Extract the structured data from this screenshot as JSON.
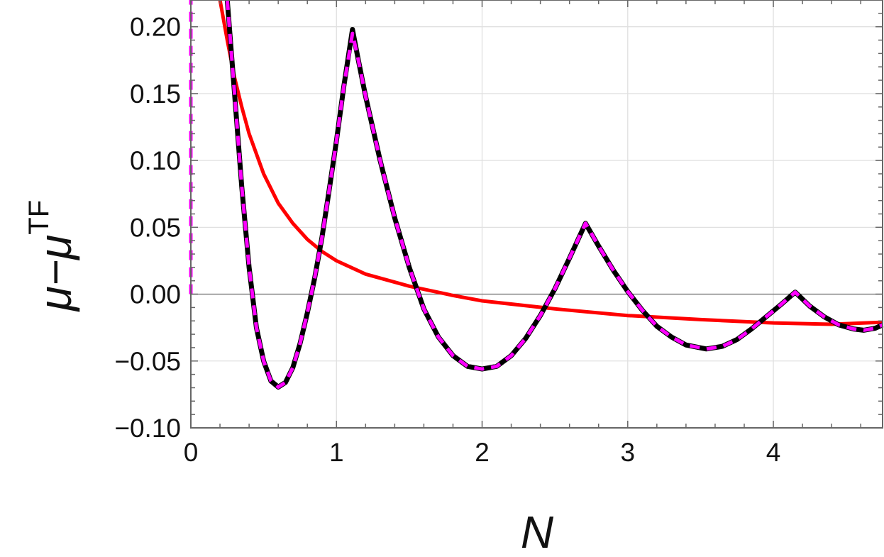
{
  "chart_data": {
    "type": "line",
    "title": "",
    "xlabel": "N",
    "ylabel": "μ−μ",
    "ylabel_superscript": "TF",
    "xlim": [
      0,
      4.75
    ],
    "ylim": [
      -0.1,
      0.22
    ],
    "x_ticks": [
      "0",
      "1",
      "2",
      "3",
      "4"
    ],
    "x_tick_values": [
      0,
      1,
      2,
      3,
      4
    ],
    "y_ticks": [
      "−0.10",
      "−0.05",
      "0.00",
      "0.05",
      "0.10",
      "0.15",
      "0.20"
    ],
    "y_tick_values": [
      -0.1,
      -0.05,
      0.0,
      0.05,
      0.1,
      0.15,
      0.2
    ],
    "grid": true,
    "colors": {
      "black_series": "#000000",
      "red_series": "#ff0000",
      "magenta_series": "#ff00ff",
      "grid": "#e0e0e0",
      "frame": "#666666"
    },
    "series": [
      {
        "style": "solid",
        "color": "#ff0000",
        "points": [
          [
            0.2,
            0.22
          ],
          [
            0.25,
            0.19
          ],
          [
            0.3,
            0.162
          ],
          [
            0.35,
            0.14
          ],
          [
            0.4,
            0.12
          ],
          [
            0.5,
            0.09
          ],
          [
            0.6,
            0.068
          ],
          [
            0.7,
            0.053
          ],
          [
            0.8,
            0.041
          ],
          [
            0.9,
            0.032
          ],
          [
            1.0,
            0.025
          ],
          [
            1.2,
            0.015
          ],
          [
            1.5,
            0.006
          ],
          [
            1.8,
            -0.001
          ],
          [
            2.0,
            -0.005
          ],
          [
            2.5,
            -0.011
          ],
          [
            3.0,
            -0.016
          ],
          [
            3.5,
            -0.019
          ],
          [
            4.0,
            -0.0215
          ],
          [
            4.4,
            -0.0225
          ],
          [
            4.75,
            -0.021
          ]
        ]
      },
      {
        "style": "solid",
        "color": "#000000",
        "points": [
          [
            0.25,
            0.22
          ],
          [
            0.3,
            0.15
          ],
          [
            0.35,
            0.08
          ],
          [
            0.4,
            0.02
          ],
          [
            0.45,
            -0.025
          ],
          [
            0.5,
            -0.05
          ],
          [
            0.55,
            -0.065
          ],
          [
            0.6,
            -0.0695
          ],
          [
            0.65,
            -0.066
          ],
          [
            0.7,
            -0.055
          ],
          [
            0.75,
            -0.037
          ],
          [
            0.8,
            -0.014
          ],
          [
            0.85,
            0.012
          ],
          [
            0.9,
            0.042
          ],
          [
            0.95,
            0.078
          ],
          [
            1.0,
            0.115
          ],
          [
            1.05,
            0.155
          ],
          [
            1.11,
            0.198
          ],
          [
            1.15,
            0.175
          ],
          [
            1.2,
            0.148
          ],
          [
            1.3,
            0.1
          ],
          [
            1.4,
            0.057
          ],
          [
            1.5,
            0.02
          ],
          [
            1.6,
            -0.011
          ],
          [
            1.7,
            -0.032
          ],
          [
            1.8,
            -0.046
          ],
          [
            1.9,
            -0.054
          ],
          [
            2.0,
            -0.056
          ],
          [
            2.1,
            -0.054
          ],
          [
            2.2,
            -0.046
          ],
          [
            2.3,
            -0.033
          ],
          [
            2.4,
            -0.016
          ],
          [
            2.5,
            0.004
          ],
          [
            2.6,
            0.027
          ],
          [
            2.71,
            0.053
          ],
          [
            2.8,
            0.036
          ],
          [
            2.9,
            0.018
          ],
          [
            3.0,
            0.002
          ],
          [
            3.1,
            -0.012
          ],
          [
            3.2,
            -0.024
          ],
          [
            3.3,
            -0.032
          ],
          [
            3.4,
            -0.038
          ],
          [
            3.54,
            -0.041
          ],
          [
            3.65,
            -0.039
          ],
          [
            3.75,
            -0.034
          ],
          [
            3.85,
            -0.026
          ],
          [
            3.95,
            -0.017
          ],
          [
            4.05,
            -0.008
          ],
          [
            4.15,
            0.0015
          ],
          [
            4.25,
            -0.009
          ],
          [
            4.35,
            -0.017
          ],
          [
            4.45,
            -0.023
          ],
          [
            4.55,
            -0.026
          ],
          [
            4.62,
            -0.027
          ],
          [
            4.7,
            -0.0255
          ],
          [
            4.75,
            -0.023
          ]
        ]
      },
      {
        "style": "dashed",
        "color": "#ff00ff",
        "points": [
          [
            0.25,
            0.22
          ],
          [
            0.3,
            0.15
          ],
          [
            0.35,
            0.08
          ],
          [
            0.4,
            0.02
          ],
          [
            0.45,
            -0.025
          ],
          [
            0.5,
            -0.05
          ],
          [
            0.55,
            -0.065
          ],
          [
            0.6,
            -0.0695
          ],
          [
            0.65,
            -0.066
          ],
          [
            0.7,
            -0.055
          ],
          [
            0.75,
            -0.037
          ],
          [
            0.8,
            -0.014
          ],
          [
            0.85,
            0.012
          ],
          [
            0.9,
            0.042
          ],
          [
            0.95,
            0.078
          ],
          [
            1.0,
            0.115
          ],
          [
            1.05,
            0.155
          ],
          [
            1.11,
            0.195
          ],
          [
            1.15,
            0.175
          ],
          [
            1.2,
            0.148
          ],
          [
            1.3,
            0.1
          ],
          [
            1.4,
            0.057
          ],
          [
            1.5,
            0.02
          ],
          [
            1.6,
            -0.011
          ],
          [
            1.7,
            -0.032
          ],
          [
            1.8,
            -0.046
          ],
          [
            1.9,
            -0.054
          ],
          [
            2.0,
            -0.056
          ],
          [
            2.1,
            -0.054
          ],
          [
            2.2,
            -0.046
          ],
          [
            2.3,
            -0.033
          ],
          [
            2.4,
            -0.016
          ],
          [
            2.5,
            0.004
          ],
          [
            2.6,
            0.027
          ],
          [
            2.71,
            0.053
          ],
          [
            2.8,
            0.036
          ],
          [
            2.9,
            0.018
          ],
          [
            3.0,
            0.002
          ],
          [
            3.1,
            -0.012
          ],
          [
            3.2,
            -0.024
          ],
          [
            3.3,
            -0.032
          ],
          [
            3.4,
            -0.038
          ],
          [
            3.54,
            -0.041
          ],
          [
            3.65,
            -0.039
          ],
          [
            3.75,
            -0.034
          ],
          [
            3.85,
            -0.026
          ],
          [
            3.95,
            -0.017
          ],
          [
            4.05,
            -0.008
          ],
          [
            4.15,
            0.0015
          ],
          [
            4.25,
            -0.009
          ],
          [
            4.35,
            -0.017
          ],
          [
            4.45,
            -0.023
          ],
          [
            4.55,
            -0.026
          ],
          [
            4.62,
            -0.027
          ],
          [
            4.7,
            -0.0255
          ],
          [
            4.75,
            -0.023
          ]
        ]
      },
      {
        "style": "dashed",
        "color": "#ff00ff",
        "points": [
          [
            0.0,
            0.0
          ],
          [
            0.0,
            0.22
          ]
        ]
      }
    ]
  }
}
